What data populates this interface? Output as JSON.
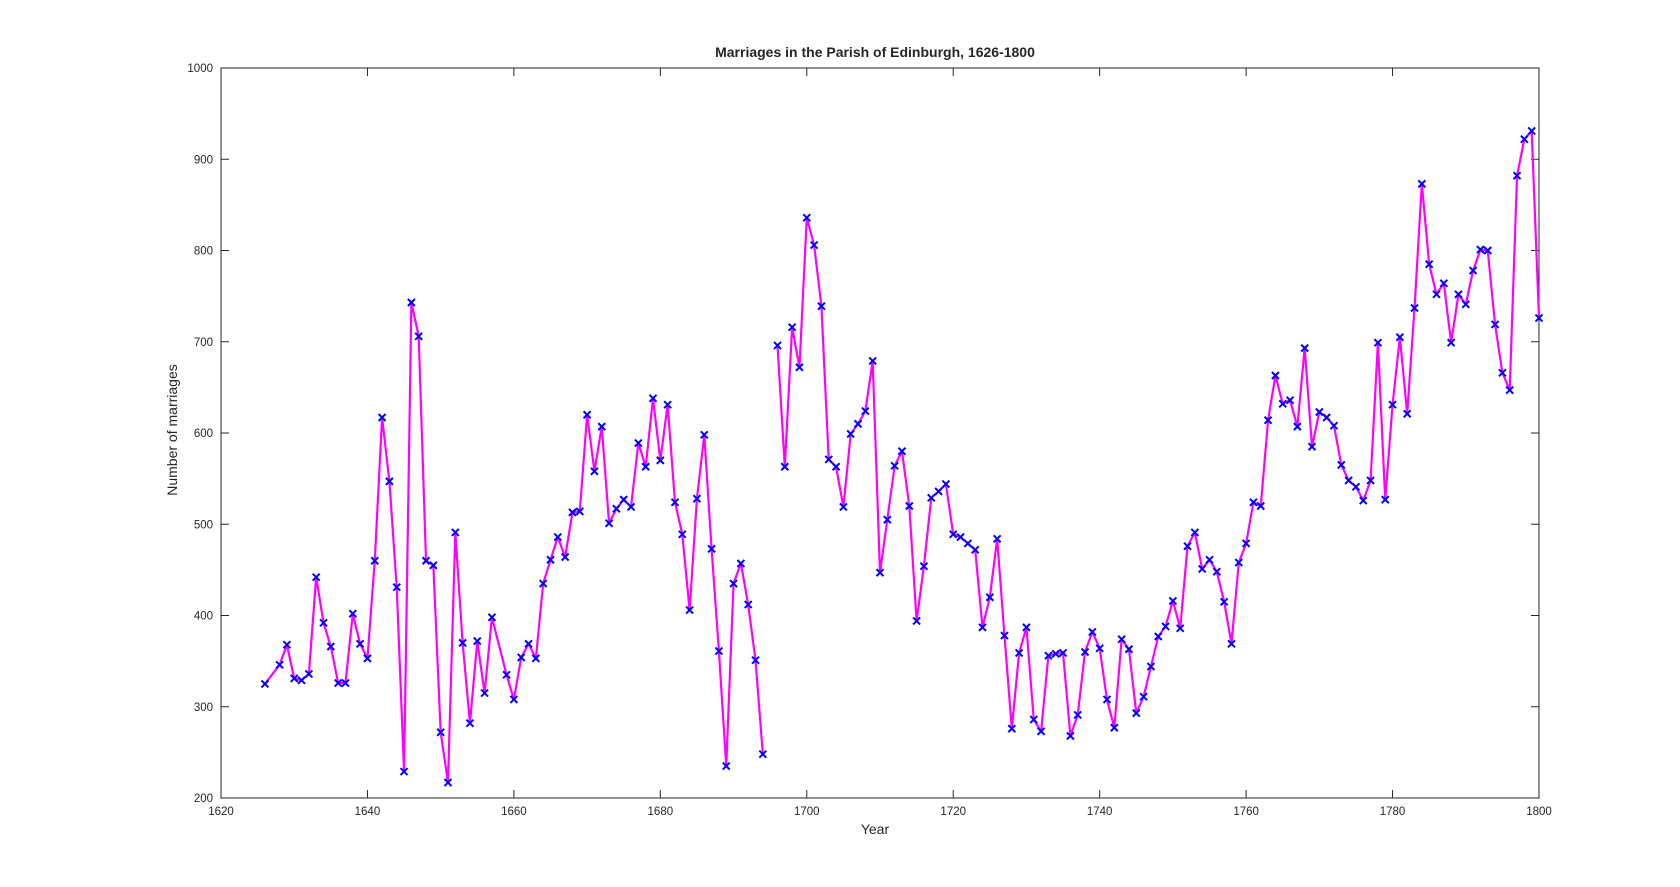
{
  "chart_data": {
    "type": "line",
    "title": "Marriages in the Parish of Edinburgh, 1626-1800",
    "xlabel": "Year",
    "ylabel": "Number of marriages",
    "xlim": [
      1620,
      1800
    ],
    "ylim": [
      200,
      1000
    ],
    "xticks": [
      "1620",
      "1640",
      "1660",
      "1680",
      "1700",
      "1720",
      "1740",
      "1760",
      "1780",
      "1800"
    ],
    "yticks": [
      "200",
      "300",
      "400",
      "500",
      "600",
      "700",
      "800",
      "900",
      "1000"
    ],
    "grid": false,
    "legend": "none",
    "line_color": "#ff00ff",
    "marker_color": "#0000ff",
    "marker": "x",
    "series": [
      {
        "x": [
          1626,
          1628,
          1629,
          1630,
          1631,
          1632,
          1633,
          1634,
          1635,
          1636,
          1637,
          1638,
          1639,
          1640,
          1641,
          1642,
          1643,
          1644,
          1645,
          1646,
          1647,
          1648,
          1649,
          1650,
          1651,
          1652,
          1653,
          1654,
          1655,
          1656,
          1657,
          1659,
          1660,
          1661,
          1662,
          1663,
          1664,
          1665,
          1666,
          1667,
          1668,
          1669,
          1670,
          1671,
          1672,
          1673,
          1674,
          1675,
          1676,
          1677,
          1678,
          1679,
          1680,
          1681,
          1682,
          1683,
          1684,
          1685,
          1686,
          1687,
          1688,
          1689,
          1690,
          1691,
          1692,
          1693,
          1694,
          1696,
          1697,
          1698,
          1699,
          1700,
          1701,
          1702,
          1703,
          1704,
          1705,
          1706,
          1707,
          1708,
          1709,
          1710,
          1711,
          1712,
          1713,
          1714,
          1715,
          1716,
          1717,
          1718,
          1719,
          1720,
          1721,
          1722,
          1723,
          1724,
          1725,
          1726,
          1727,
          1728,
          1729,
          1730,
          1731,
          1732,
          1733,
          1734,
          1735,
          1736,
          1737,
          1738,
          1739,
          1740,
          1741,
          1742,
          1743,
          1744,
          1745,
          1746,
          1747,
          1748,
          1749,
          1750,
          1751,
          1752,
          1753,
          1754,
          1755,
          1756,
          1757,
          1758,
          1759,
          1760,
          1761,
          1762,
          1763,
          1764,
          1765,
          1766,
          1767,
          1768,
          1769,
          1770,
          1771,
          1772,
          1773,
          1774,
          1775,
          1776,
          1777,
          1778,
          1779,
          1780,
          1781,
          1782,
          1783,
          1784,
          1785,
          1786,
          1787,
          1788,
          1789,
          1790,
          1791,
          1792,
          1793,
          1794,
          1795,
          1796,
          1797,
          1798,
          1799,
          1800
        ],
        "y": [
          325,
          346,
          368,
          331,
          329,
          336,
          442,
          392,
          366,
          326,
          326,
          402,
          369,
          353,
          460,
          617,
          547,
          431,
          229,
          743,
          706,
          460,
          455,
          272,
          217,
          491,
          370,
          282,
          372,
          315,
          398,
          335,
          308,
          354,
          369,
          353,
          435,
          461,
          486,
          464,
          513,
          514,
          620,
          558,
          607,
          501,
          517,
          527,
          519,
          589,
          563,
          638,
          570,
          631,
          524,
          489,
          406,
          528,
          598,
          473,
          361,
          235,
          435,
          457,
          412,
          351,
          248,
          696,
          563,
          716,
          672,
          836,
          806,
          739,
          571,
          563,
          519,
          599,
          610,
          624,
          679,
          447,
          505,
          564,
          580,
          520,
          394,
          454,
          529,
          536,
          544,
          489,
          486,
          479,
          472,
          387,
          420,
          484,
          378,
          276,
          359,
          387,
          286,
          273,
          356,
          358,
          359,
          268,
          291,
          360,
          382,
          364,
          308,
          277,
          374,
          363,
          293,
          311,
          344,
          377,
          388,
          416,
          386,
          476,
          491,
          451,
          461,
          448,
          415,
          369,
          458,
          479,
          524,
          520,
          614,
          663,
          632,
          636,
          607,
          693,
          585,
          623,
          617,
          608,
          565,
          548,
          541,
          526,
          548,
          699,
          527,
          631,
          705,
          621,
          737,
          873,
          785,
          752,
          764,
          699,
          752,
          741,
          778,
          801,
          800,
          719,
          666,
          647,
          882,
          922,
          931,
          726
        ]
      }
    ]
  }
}
